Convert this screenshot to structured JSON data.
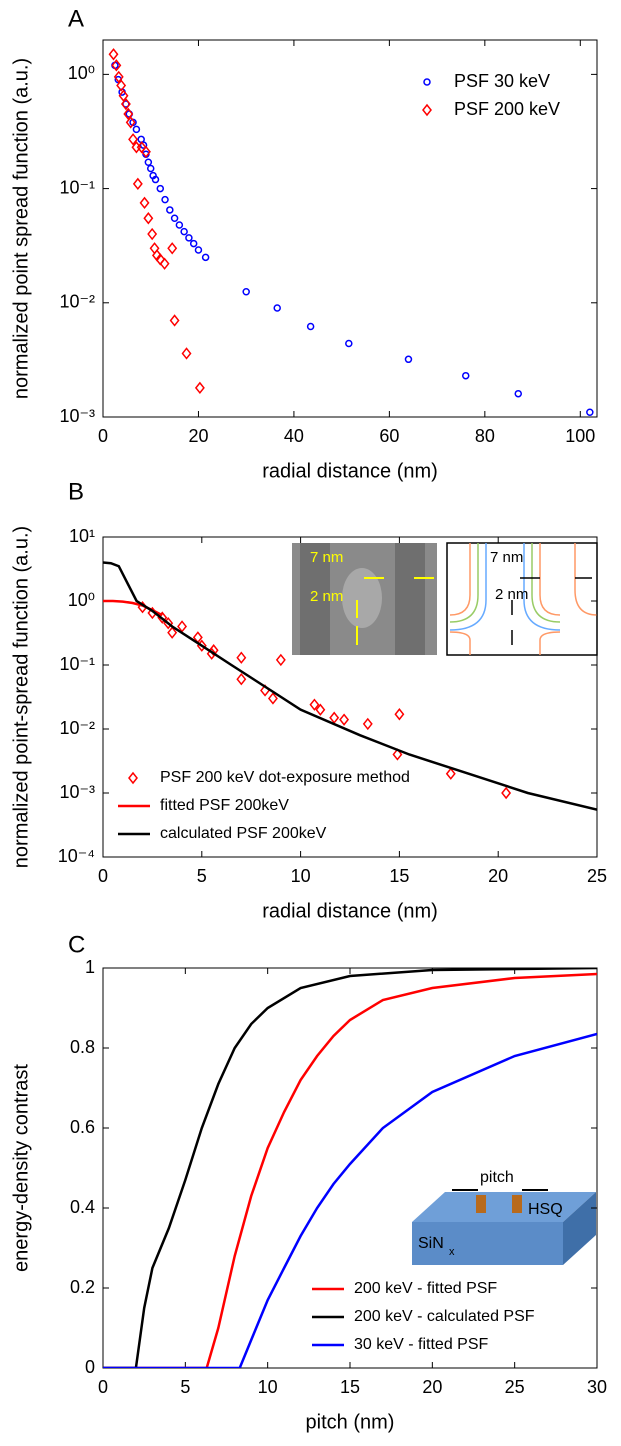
{
  "chart_data": [
    {
      "type": "scatter",
      "panel_label": "A",
      "xlabel": "radial distance (nm)",
      "ylabel": "normalized point spread function (a.u.)",
      "xlim": [
        0,
        103.5
      ],
      "xticks": [
        0,
        20,
        40,
        60,
        80,
        100
      ],
      "ylim": [
        0.001,
        2
      ],
      "log_y": true,
      "yticks": [
        {
          "value": 0.001,
          "label": "10⁻³"
        },
        {
          "value": 0.01,
          "label": "10⁻²"
        },
        {
          "value": 0.1,
          "label": "10⁻¹"
        },
        {
          "value": 1,
          "label": "10⁰"
        }
      ],
      "legend": "upper right",
      "series": [
        {
          "name": "PSF 30 keV",
          "color": "#0000ff",
          "marker": "circle",
          "x": [
            2.5,
            3.2,
            4,
            4.8,
            5.5,
            6.3,
            7,
            8,
            8.5,
            9,
            9.5,
            10,
            10.5,
            11,
            12,
            13,
            14,
            15,
            16,
            17,
            18,
            19,
            20,
            21.5,
            30,
            36.5,
            43.5,
            51.5,
            64,
            76,
            87,
            102
          ],
          "values": [
            1.2,
            0.9,
            0.7,
            0.55,
            0.45,
            0.38,
            0.33,
            0.27,
            0.24,
            0.2,
            0.17,
            0.15,
            0.13,
            0.12,
            0.1,
            0.08,
            0.065,
            0.055,
            0.048,
            0.042,
            0.037,
            0.033,
            0.029,
            0.025,
            0.0125,
            0.009,
            0.0062,
            0.0044,
            0.0032,
            0.0023,
            0.0016,
            0.0011
          ]
        },
        {
          "name": "PSF 200 keV",
          "color": "#ff0000",
          "marker": "diamond",
          "x": [
            2.2,
            2.8,
            3.3,
            3.8,
            4.3,
            4.8,
            5.3,
            5.8,
            6.3,
            7,
            7.3,
            8.1,
            8.7,
            9,
            9.5,
            10.3,
            10.8,
            11.3,
            12,
            12.9,
            14.5,
            15,
            17.5,
            20.3
          ],
          "values": [
            1.5,
            1.2,
            0.95,
            0.8,
            0.65,
            0.55,
            0.45,
            0.38,
            0.27,
            0.23,
            0.11,
            0.23,
            0.075,
            0.21,
            0.055,
            0.04,
            0.03,
            0.026,
            0.024,
            0.022,
            0.03,
            0.007,
            0.0036,
            0.0018
          ]
        }
      ]
    },
    {
      "type": "line",
      "panel_label": "B",
      "xlabel": "radial distance (nm)",
      "ylabel": "normalized point-spread function (a.u.)",
      "xlim": [
        0,
        25
      ],
      "xticks": [
        0,
        5,
        10,
        15,
        20,
        25
      ],
      "ylim": [
        0.0001,
        10
      ],
      "log_y": true,
      "yticks": [
        {
          "value": 0.0001,
          "label": "10⁻⁴"
        },
        {
          "value": 0.001,
          "label": "10⁻³"
        },
        {
          "value": 0.01,
          "label": "10⁻²"
        },
        {
          "value": 0.1,
          "label": "10⁻¹"
        },
        {
          "value": 1,
          "label": "10⁰"
        },
        {
          "value": 10,
          "label": "10¹"
        }
      ],
      "legend": "lower left",
      "inset_labels": [
        "7 nm",
        "2 nm",
        "7 nm",
        "2 nm"
      ],
      "series": [
        {
          "name": "PSF 200 keV dot-exposure method",
          "color": "#ff0000",
          "marker": "diamond",
          "x": [
            2,
            2.5,
            3,
            3.3,
            3.5,
            4,
            4.8,
            5,
            5.5,
            5.6,
            7,
            7,
            8.2,
            8.6,
            9,
            10.7,
            11,
            11.7,
            12.2,
            13.4,
            15,
            14.9,
            17.6,
            20.4
          ],
          "values": [
            0.8,
            0.65,
            0.55,
            0.45,
            0.32,
            0.4,
            0.27,
            0.2,
            0.15,
            0.17,
            0.13,
            0.06,
            0.04,
            0.03,
            0.12,
            0.024,
            0.02,
            0.015,
            0.014,
            0.012,
            0.017,
            0.004,
            0.002,
            0.001
          ]
        },
        {
          "name": "fitted PSF 200keV",
          "color": "#ff0000",
          "x": [
            0,
            0.5,
            1,
            1.5,
            2,
            2.5,
            3
          ],
          "values": [
            1,
            1,
            0.98,
            0.93,
            0.85,
            0.72,
            0.6
          ]
        },
        {
          "name": "calculated PSF 200keV",
          "color": "#000000",
          "x": [
            0,
            0.4,
            0.8,
            1.2,
            1.7,
            2.5,
            3.5,
            5,
            6.5,
            8.5,
            10,
            13,
            15.5,
            18.5,
            21.5,
            25
          ],
          "values": [
            4,
            3.9,
            3.5,
            2,
            1,
            0.7,
            0.4,
            0.2,
            0.1,
            0.04,
            0.02,
            0.008,
            0.004,
            0.002,
            0.001,
            0.00055
          ]
        }
      ]
    },
    {
      "type": "line",
      "panel_label": "C",
      "xlabel": "pitch (nm)",
      "ylabel": "energy-density contrast",
      "xlim": [
        0,
        30
      ],
      "xticks": [
        0,
        5,
        10,
        15,
        20,
        25,
        30
      ],
      "ylim": [
        0,
        1
      ],
      "yticks": [
        0,
        0.2,
        0.4,
        0.6,
        0.8,
        1
      ],
      "legend": "lower right",
      "inset_labels": [
        "pitch",
        "HSQ",
        "SiN",
        "x"
      ],
      "series": [
        {
          "name": "200 keV - fitted PSF",
          "color": "#ff0000",
          "x": [
            0,
            6.3,
            7,
            8,
            9,
            10,
            11,
            12,
            13,
            14,
            15,
            17,
            20,
            25,
            30
          ],
          "values": [
            0,
            0,
            0.1,
            0.28,
            0.43,
            0.55,
            0.64,
            0.72,
            0.78,
            0.83,
            0.87,
            0.92,
            0.95,
            0.975,
            0.985
          ]
        },
        {
          "name": "200 keV - calculated PSF",
          "color": "#000000",
          "x": [
            0,
            2,
            2.5,
            3,
            4,
            5,
            6,
            7,
            8,
            9,
            10,
            12,
            15,
            20,
            30
          ],
          "values": [
            0,
            0,
            0.15,
            0.25,
            0.35,
            0.47,
            0.6,
            0.71,
            0.8,
            0.86,
            0.9,
            0.95,
            0.98,
            0.995,
            1
          ]
        },
        {
          "name": "30 keV - fitted PSF",
          "color": "#0000ff",
          "x": [
            0,
            8.3,
            9,
            10,
            11,
            12,
            13,
            14,
            15,
            17,
            20,
            25,
            30
          ],
          "values": [
            0,
            0,
            0.07,
            0.17,
            0.25,
            0.33,
            0.4,
            0.46,
            0.51,
            0.6,
            0.69,
            0.78,
            0.835
          ]
        }
      ]
    }
  ]
}
